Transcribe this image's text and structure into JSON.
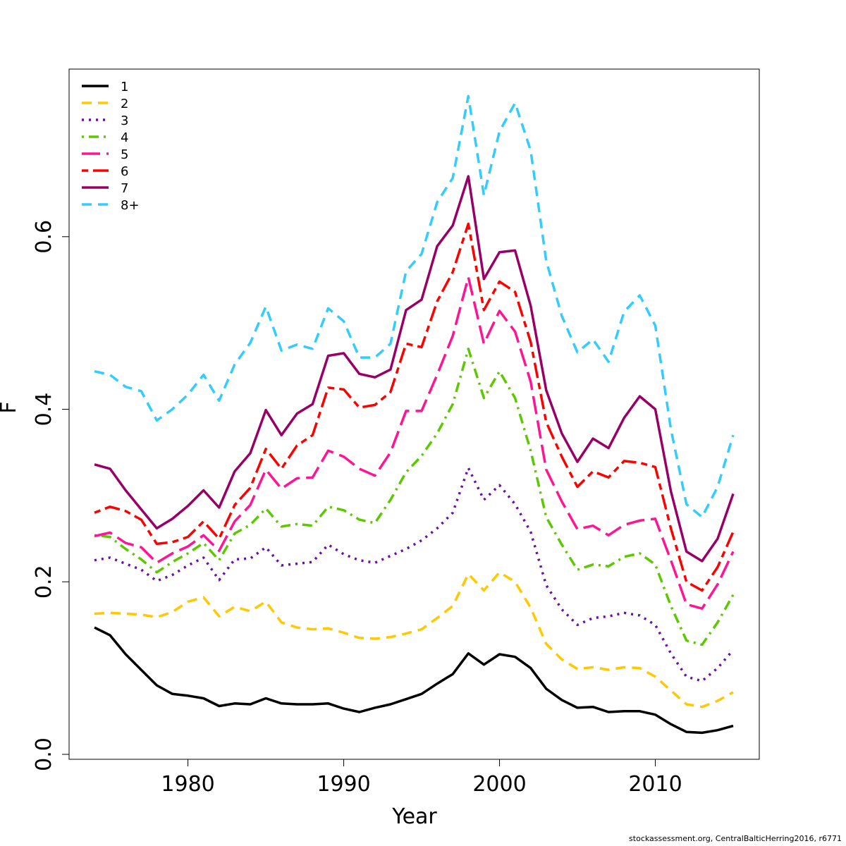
{
  "footer_text": "stockassessment.org, CentralBalticHerring2016, r6771",
  "chart_data": {
    "type": "line",
    "xlabel": "Year",
    "ylabel": "F",
    "xlim": [
      1974,
      2015
    ],
    "ylim": [
      0,
      0.8
    ],
    "x_ticks": [
      1980,
      1990,
      2000,
      2010
    ],
    "y_ticks": [
      0.0,
      0.2,
      0.4,
      0.6
    ],
    "y_tick_labels": [
      "0.0",
      "0.2",
      "0.4",
      "0.6"
    ],
    "grid": false,
    "legend_position": "top-left",
    "x": [
      1974,
      1975,
      1976,
      1977,
      1978,
      1979,
      1980,
      1981,
      1982,
      1983,
      1984,
      1985,
      1986,
      1987,
      1988,
      1989,
      1990,
      1991,
      1992,
      1993,
      1994,
      1995,
      1996,
      1997,
      1998,
      1999,
      2000,
      2001,
      2002,
      2003,
      2004,
      2005,
      2006,
      2007,
      2008,
      2009,
      2010,
      2011,
      2012,
      2013,
      2014,
      2015
    ],
    "series": [
      {
        "name": "1",
        "color": "#000000",
        "dash": "solid",
        "values": [
          0.147,
          0.138,
          0.116,
          0.098,
          0.08,
          0.07,
          0.068,
          0.065,
          0.056,
          0.059,
          0.058,
          0.065,
          0.059,
          0.058,
          0.058,
          0.059,
          0.053,
          0.049,
          0.054,
          0.058,
          0.064,
          0.07,
          0.082,
          0.093,
          0.117,
          0.104,
          0.116,
          0.113,
          0.1,
          0.076,
          0.063,
          0.054,
          0.055,
          0.049,
          0.05,
          0.05,
          0.046,
          0.035,
          0.026,
          0.025,
          0.028,
          0.033
        ]
      },
      {
        "name": "2",
        "color": "#FFC800",
        "dash": "dashed",
        "values": [
          0.163,
          0.164,
          0.163,
          0.162,
          0.159,
          0.165,
          0.177,
          0.182,
          0.16,
          0.171,
          0.166,
          0.177,
          0.153,
          0.147,
          0.145,
          0.146,
          0.141,
          0.135,
          0.134,
          0.136,
          0.14,
          0.145,
          0.158,
          0.172,
          0.209,
          0.19,
          0.211,
          0.2,
          0.17,
          0.128,
          0.11,
          0.099,
          0.101,
          0.098,
          0.101,
          0.1,
          0.09,
          0.074,
          0.058,
          0.055,
          0.062,
          0.072
        ]
      },
      {
        "name": "3",
        "color": "#6A0DAD",
        "dash": "dotted",
        "values": [
          0.225,
          0.228,
          0.221,
          0.214,
          0.201,
          0.208,
          0.219,
          0.228,
          0.202,
          0.226,
          0.227,
          0.24,
          0.219,
          0.221,
          0.223,
          0.243,
          0.232,
          0.225,
          0.222,
          0.23,
          0.238,
          0.248,
          0.262,
          0.28,
          0.332,
          0.295,
          0.312,
          0.29,
          0.258,
          0.196,
          0.168,
          0.15,
          0.158,
          0.16,
          0.164,
          0.161,
          0.15,
          0.117,
          0.09,
          0.085,
          0.1,
          0.121
        ]
      },
      {
        "name": "4",
        "color": "#5DC800",
        "dash": "dashdot",
        "values": [
          0.254,
          0.252,
          0.238,
          0.226,
          0.211,
          0.223,
          0.233,
          0.245,
          0.225,
          0.256,
          0.266,
          0.285,
          0.264,
          0.267,
          0.265,
          0.287,
          0.283,
          0.272,
          0.268,
          0.295,
          0.327,
          0.346,
          0.372,
          0.406,
          0.47,
          0.413,
          0.444,
          0.413,
          0.352,
          0.275,
          0.243,
          0.214,
          0.22,
          0.218,
          0.229,
          0.233,
          0.22,
          0.172,
          0.132,
          0.127,
          0.153,
          0.185
        ]
      },
      {
        "name": "5",
        "color": "#FF1493",
        "dash": "longdash",
        "values": [
          0.253,
          0.257,
          0.245,
          0.24,
          0.222,
          0.233,
          0.241,
          0.254,
          0.236,
          0.27,
          0.289,
          0.33,
          0.308,
          0.32,
          0.321,
          0.352,
          0.345,
          0.331,
          0.323,
          0.35,
          0.398,
          0.398,
          0.44,
          0.485,
          0.553,
          0.476,
          0.514,
          0.49,
          0.432,
          0.33,
          0.293,
          0.261,
          0.265,
          0.254,
          0.266,
          0.271,
          0.273,
          0.225,
          0.174,
          0.169,
          0.197,
          0.235
        ]
      },
      {
        "name": "6",
        "color": "#FF0000",
        "dash": "twodash",
        "values": [
          0.28,
          0.287,
          0.282,
          0.272,
          0.244,
          0.246,
          0.252,
          0.27,
          0.25,
          0.289,
          0.309,
          0.354,
          0.331,
          0.358,
          0.37,
          0.425,
          0.423,
          0.402,
          0.405,
          0.42,
          0.476,
          0.472,
          0.525,
          0.559,
          0.615,
          0.515,
          0.548,
          0.536,
          0.478,
          0.385,
          0.345,
          0.31,
          0.328,
          0.321,
          0.34,
          0.338,
          0.333,
          0.262,
          0.2,
          0.19,
          0.217,
          0.258
        ]
      },
      {
        "name": "7",
        "color": "#990066",
        "dash": "solid",
        "values": [
          0.336,
          0.331,
          0.306,
          0.284,
          0.262,
          0.273,
          0.288,
          0.306,
          0.286,
          0.328,
          0.349,
          0.399,
          0.37,
          0.395,
          0.406,
          0.462,
          0.465,
          0.441,
          0.437,
          0.446,
          0.515,
          0.527,
          0.589,
          0.613,
          0.67,
          0.551,
          0.582,
          0.584,
          0.52,
          0.422,
          0.372,
          0.339,
          0.366,
          0.355,
          0.39,
          0.415,
          0.4,
          0.305,
          0.235,
          0.224,
          0.25,
          0.302
        ]
      },
      {
        "name": "8+",
        "color": "#33CCFF",
        "dash": "dashed",
        "values": [
          0.444,
          0.44,
          0.426,
          0.421,
          0.387,
          0.4,
          0.417,
          0.44,
          0.41,
          0.452,
          0.477,
          0.519,
          0.468,
          0.475,
          0.47,
          0.517,
          0.502,
          0.46,
          0.46,
          0.476,
          0.56,
          0.58,
          0.64,
          0.668,
          0.763,
          0.648,
          0.722,
          0.755,
          0.7,
          0.572,
          0.508,
          0.466,
          0.481,
          0.455,
          0.513,
          0.532,
          0.497,
          0.377,
          0.29,
          0.275,
          0.31,
          0.37
        ]
      }
    ]
  }
}
